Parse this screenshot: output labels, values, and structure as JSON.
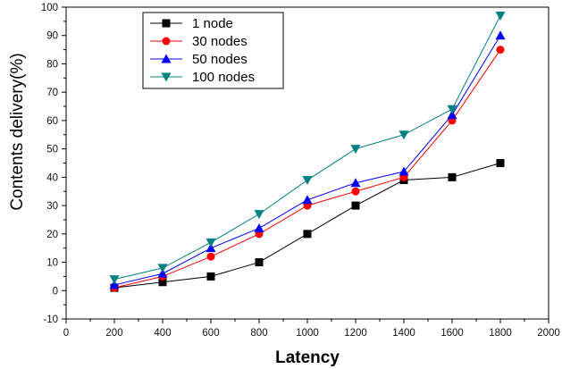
{
  "chart_data": {
    "type": "line",
    "xlabel": "Latency",
    "ylabel": "Contents delivery(%)",
    "xlim": [
      0,
      2000
    ],
    "ylim": [
      -10,
      100
    ],
    "xticks": [
      0,
      200,
      400,
      600,
      800,
      1000,
      1200,
      1400,
      1600,
      1800,
      2000
    ],
    "yticks": [
      -10,
      0,
      10,
      20,
      30,
      40,
      50,
      60,
      70,
      80,
      90,
      100
    ],
    "grid": false,
    "legend_position": "top-left",
    "x": [
      200,
      400,
      600,
      800,
      1000,
      1200,
      1400,
      1600,
      1800
    ],
    "series": [
      {
        "name": "1 node",
        "color": "#000000",
        "marker": "square",
        "values": [
          1,
          3,
          5,
          10,
          20,
          30,
          39,
          40,
          45
        ]
      },
      {
        "name": "30 nodes",
        "color": "#ff0000",
        "marker": "circle",
        "values": [
          1,
          5,
          12,
          20,
          30,
          35,
          40,
          60,
          85
        ]
      },
      {
        "name": "50 nodes",
        "color": "#0000ff",
        "marker": "triangle-up",
        "values": [
          2,
          6,
          15,
          22,
          32,
          38,
          42,
          62,
          90
        ]
      },
      {
        "name": "100 nodes",
        "color": "#008080",
        "marker": "triangle-down",
        "values": [
          4,
          8,
          17,
          27,
          39,
          50,
          55,
          64,
          97
        ]
      }
    ]
  }
}
